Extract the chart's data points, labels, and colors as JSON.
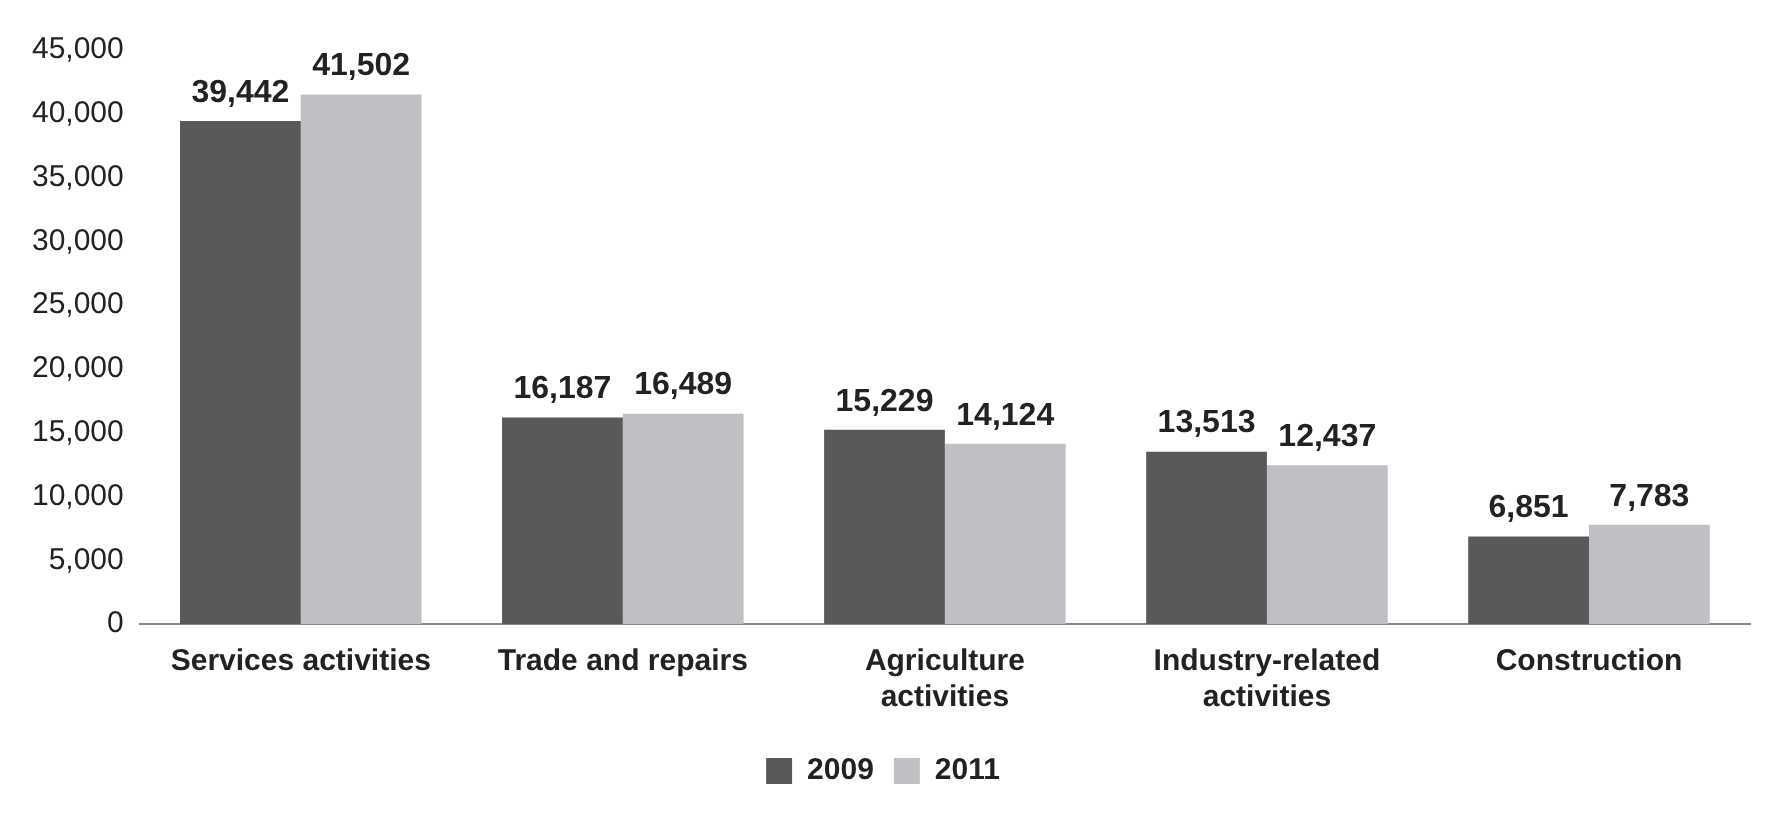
{
  "chart_data": {
    "type": "bar",
    "categories": [
      "Services activities",
      "Trade and repairs",
      "Agriculture activities",
      "Industry-related activities",
      "Construction"
    ],
    "series": [
      {
        "name": "2009",
        "color": "#595959",
        "values": [
          39442,
          16187,
          15229,
          13513,
          6851
        ],
        "value_labels": [
          "39,442",
          "16,187",
          "15,229",
          "13,513",
          "6,851"
        ]
      },
      {
        "name": "2011",
        "color": "#bfbfc4",
        "values": [
          41502,
          16489,
          14124,
          12437,
          7783
        ],
        "value_labels": [
          "41,502",
          "16,489",
          "14,124",
          "12,437",
          "7,783"
        ]
      }
    ],
    "ylim": [
      0,
      45000
    ],
    "yticks": [
      0,
      {
        "value": 5000,
        "label": "5,000"
      },
      {
        "value": 10000,
        "label": "10,000"
      },
      {
        "value": 15000,
        "label": "15,000"
      },
      {
        "value": 20000,
        "label": "20,000"
      },
      {
        "value": 25000,
        "label": "25,000"
      },
      {
        "value": 30000,
        "label": "30,000"
      },
      {
        "value": 35000,
        "label": "35,000"
      },
      {
        "value": 40000,
        "label": "40,000"
      },
      {
        "value": 45000,
        "label": "45,000"
      }
    ],
    "grid": false,
    "legend": "bottom"
  }
}
